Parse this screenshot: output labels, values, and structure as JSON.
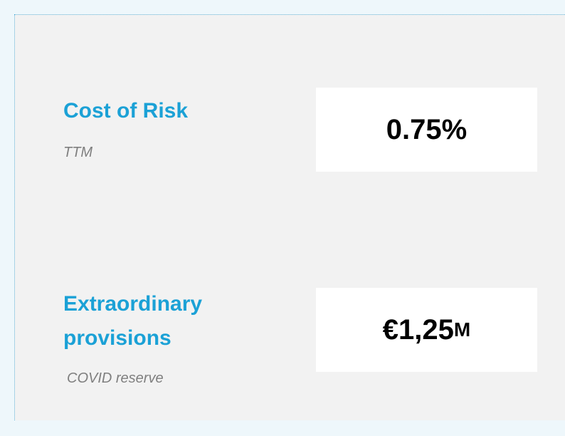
{
  "metrics": [
    {
      "label": "Cost of Risk",
      "sub": "TTM",
      "value": "0.75%"
    },
    {
      "label": "Extraordinary provisions",
      "sub": "COVID reserve",
      "value": "€1,25",
      "unit": "M"
    }
  ]
}
